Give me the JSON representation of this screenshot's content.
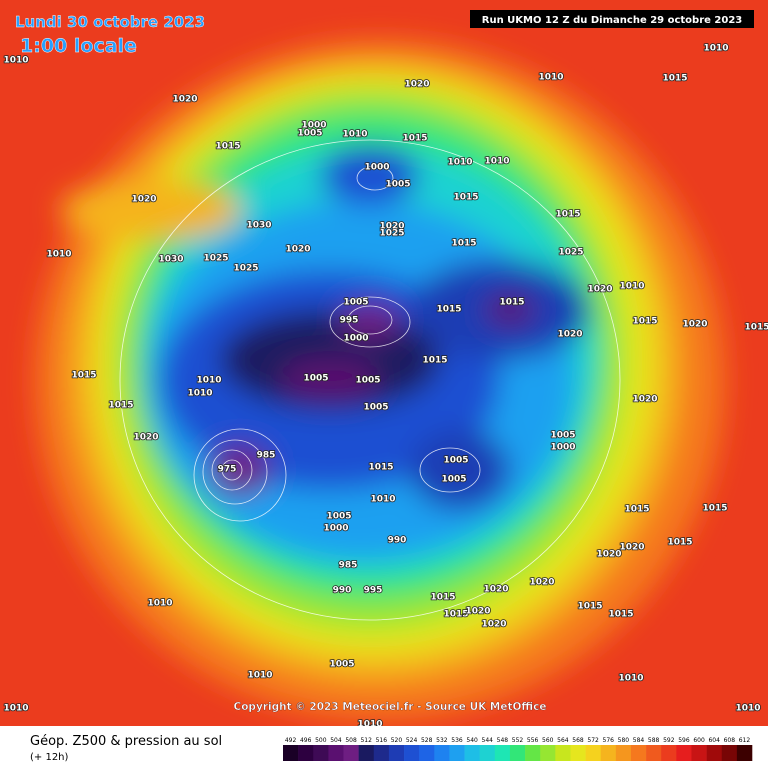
{
  "header": {
    "date": "Lundi 30 octobre 2023",
    "time": "1:00 locale",
    "run": "Run UKMO 12 Z du Dimanche 29 octobre 2023"
  },
  "copyright": "Copyright © 2023 Meteociel.fr - Source UK MetOffice",
  "footer": {
    "title": "Géop. Z500 & pression au sol",
    "subtitle": "(+ 12h)"
  },
  "colorbar": {
    "levels": [
      492,
      496,
      500,
      504,
      508,
      512,
      516,
      520,
      524,
      528,
      532,
      536,
      540,
      544,
      548,
      552,
      556,
      560,
      564,
      568,
      572,
      576,
      580,
      584,
      588,
      592,
      596,
      600,
      604,
      608,
      612
    ],
    "colors": [
      "#1a0026",
      "#2d0040",
      "#3e0a55",
      "#5a1070",
      "#6e1e82",
      "#1a1a60",
      "#1e2a8c",
      "#1e3cb4",
      "#1e50d2",
      "#1e64e6",
      "#1e82f0",
      "#1ea0f0",
      "#1ebee6",
      "#1ed2d2",
      "#1ee6b4",
      "#32e678",
      "#64e646",
      "#96e632",
      "#c8e61e",
      "#e6e61e",
      "#f5d21e",
      "#f5b41e",
      "#f5961e",
      "#f5781e",
      "#f05a1e",
      "#eb3c1e",
      "#e61e1e",
      "#c81414",
      "#a00a0a",
      "#780505",
      "#3c0000"
    ]
  },
  "pressure_labels": [
    1010,
    1020,
    1015,
    1000,
    1005,
    1010,
    1015,
    1020,
    1010,
    1015,
    1010,
    1000,
    1005,
    1010,
    1010,
    1015,
    1015,
    1015,
    1025,
    1020,
    1010,
    1015,
    1015,
    1005,
    995,
    1000,
    1015,
    1020,
    1015,
    1020,
    1005,
    1005,
    1010,
    1015,
    1020,
    1005,
    1010,
    1020,
    1005,
    1000,
    1005,
    1005,
    975,
    985,
    1015,
    1010,
    1005,
    1000,
    990,
    985,
    990,
    995,
    1020,
    1020,
    1015,
    1015,
    1020,
    1020,
    1015,
    1015,
    1020,
    1020,
    1015,
    1015,
    1015,
    1010,
    1010,
    1005,
    1010,
    1010,
    1010,
    1010,
    1020,
    1010,
    1030,
    1025,
    1025,
    1020,
    1030,
    1020,
    1025,
    1015,
    1015
  ]
}
